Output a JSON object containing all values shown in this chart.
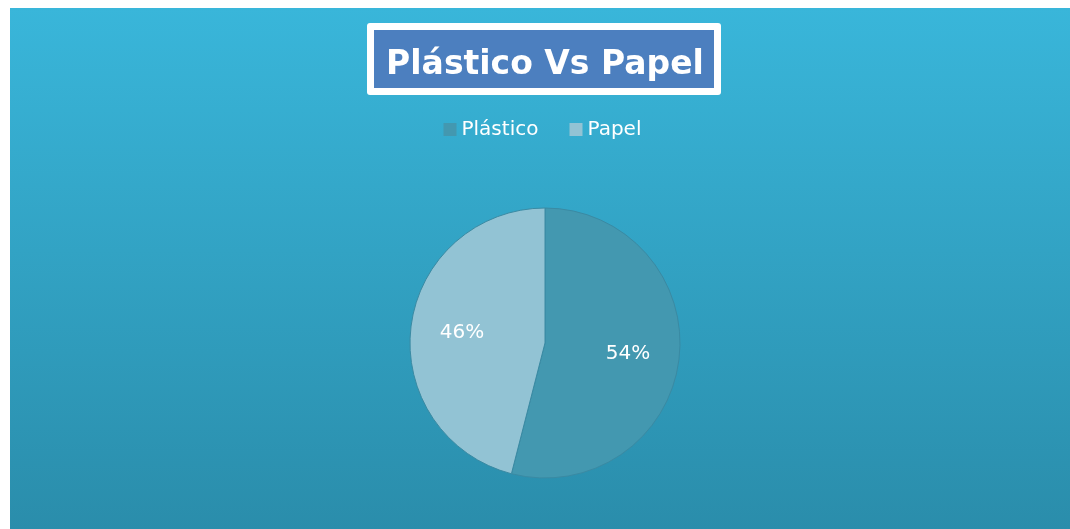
{
  "chart_data": {
    "type": "pie",
    "title": "Plástico Vs Papel",
    "categories": [
      "Plástico",
      "Papel"
    ],
    "values": [
      54,
      46
    ],
    "colors": [
      "#4398b0",
      "#92c3d4"
    ],
    "value_labels": [
      "54%",
      "46%"
    ],
    "legend": "top"
  }
}
